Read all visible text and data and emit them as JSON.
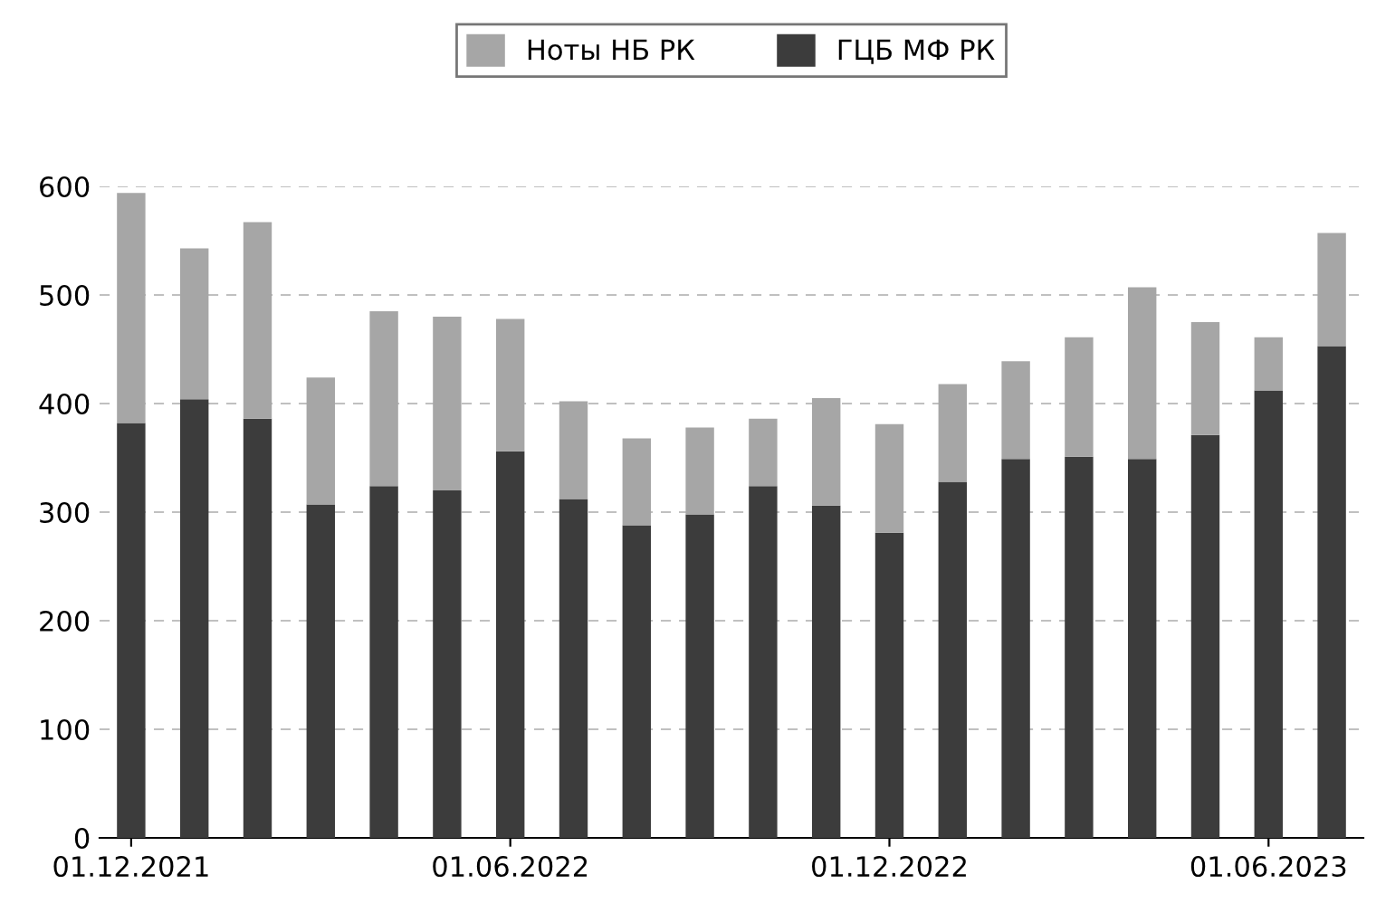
{
  "chart_data": {
    "type": "bar",
    "stacked": true,
    "categories": [
      "01.12.2021",
      null,
      null,
      null,
      null,
      null,
      "01.06.2022",
      null,
      null,
      null,
      null,
      null,
      "01.12.2022",
      null,
      null,
      null,
      null,
      null,
      "01.06.2023",
      null
    ],
    "series": [
      {
        "name": "ГЦБ МФ РК",
        "color": "#3c3c3c",
        "values": [
          382,
          404,
          386,
          307,
          324,
          320,
          356,
          312,
          288,
          298,
          324,
          306,
          281,
          328,
          349,
          351,
          349,
          371,
          412,
          453
        ]
      },
      {
        "name": "Ноты НБ РК",
        "color": "#a6a6a6",
        "values": [
          212,
          139,
          181,
          117,
          161,
          160,
          122,
          90,
          80,
          80,
          62,
          99,
          100,
          90,
          90,
          110,
          158,
          104,
          49,
          104
        ]
      }
    ],
    "ylim": [
      0,
      600
    ],
    "yticks": [
      0,
      100,
      200,
      300,
      400,
      500,
      600
    ],
    "grid": "y",
    "legend": "top"
  }
}
